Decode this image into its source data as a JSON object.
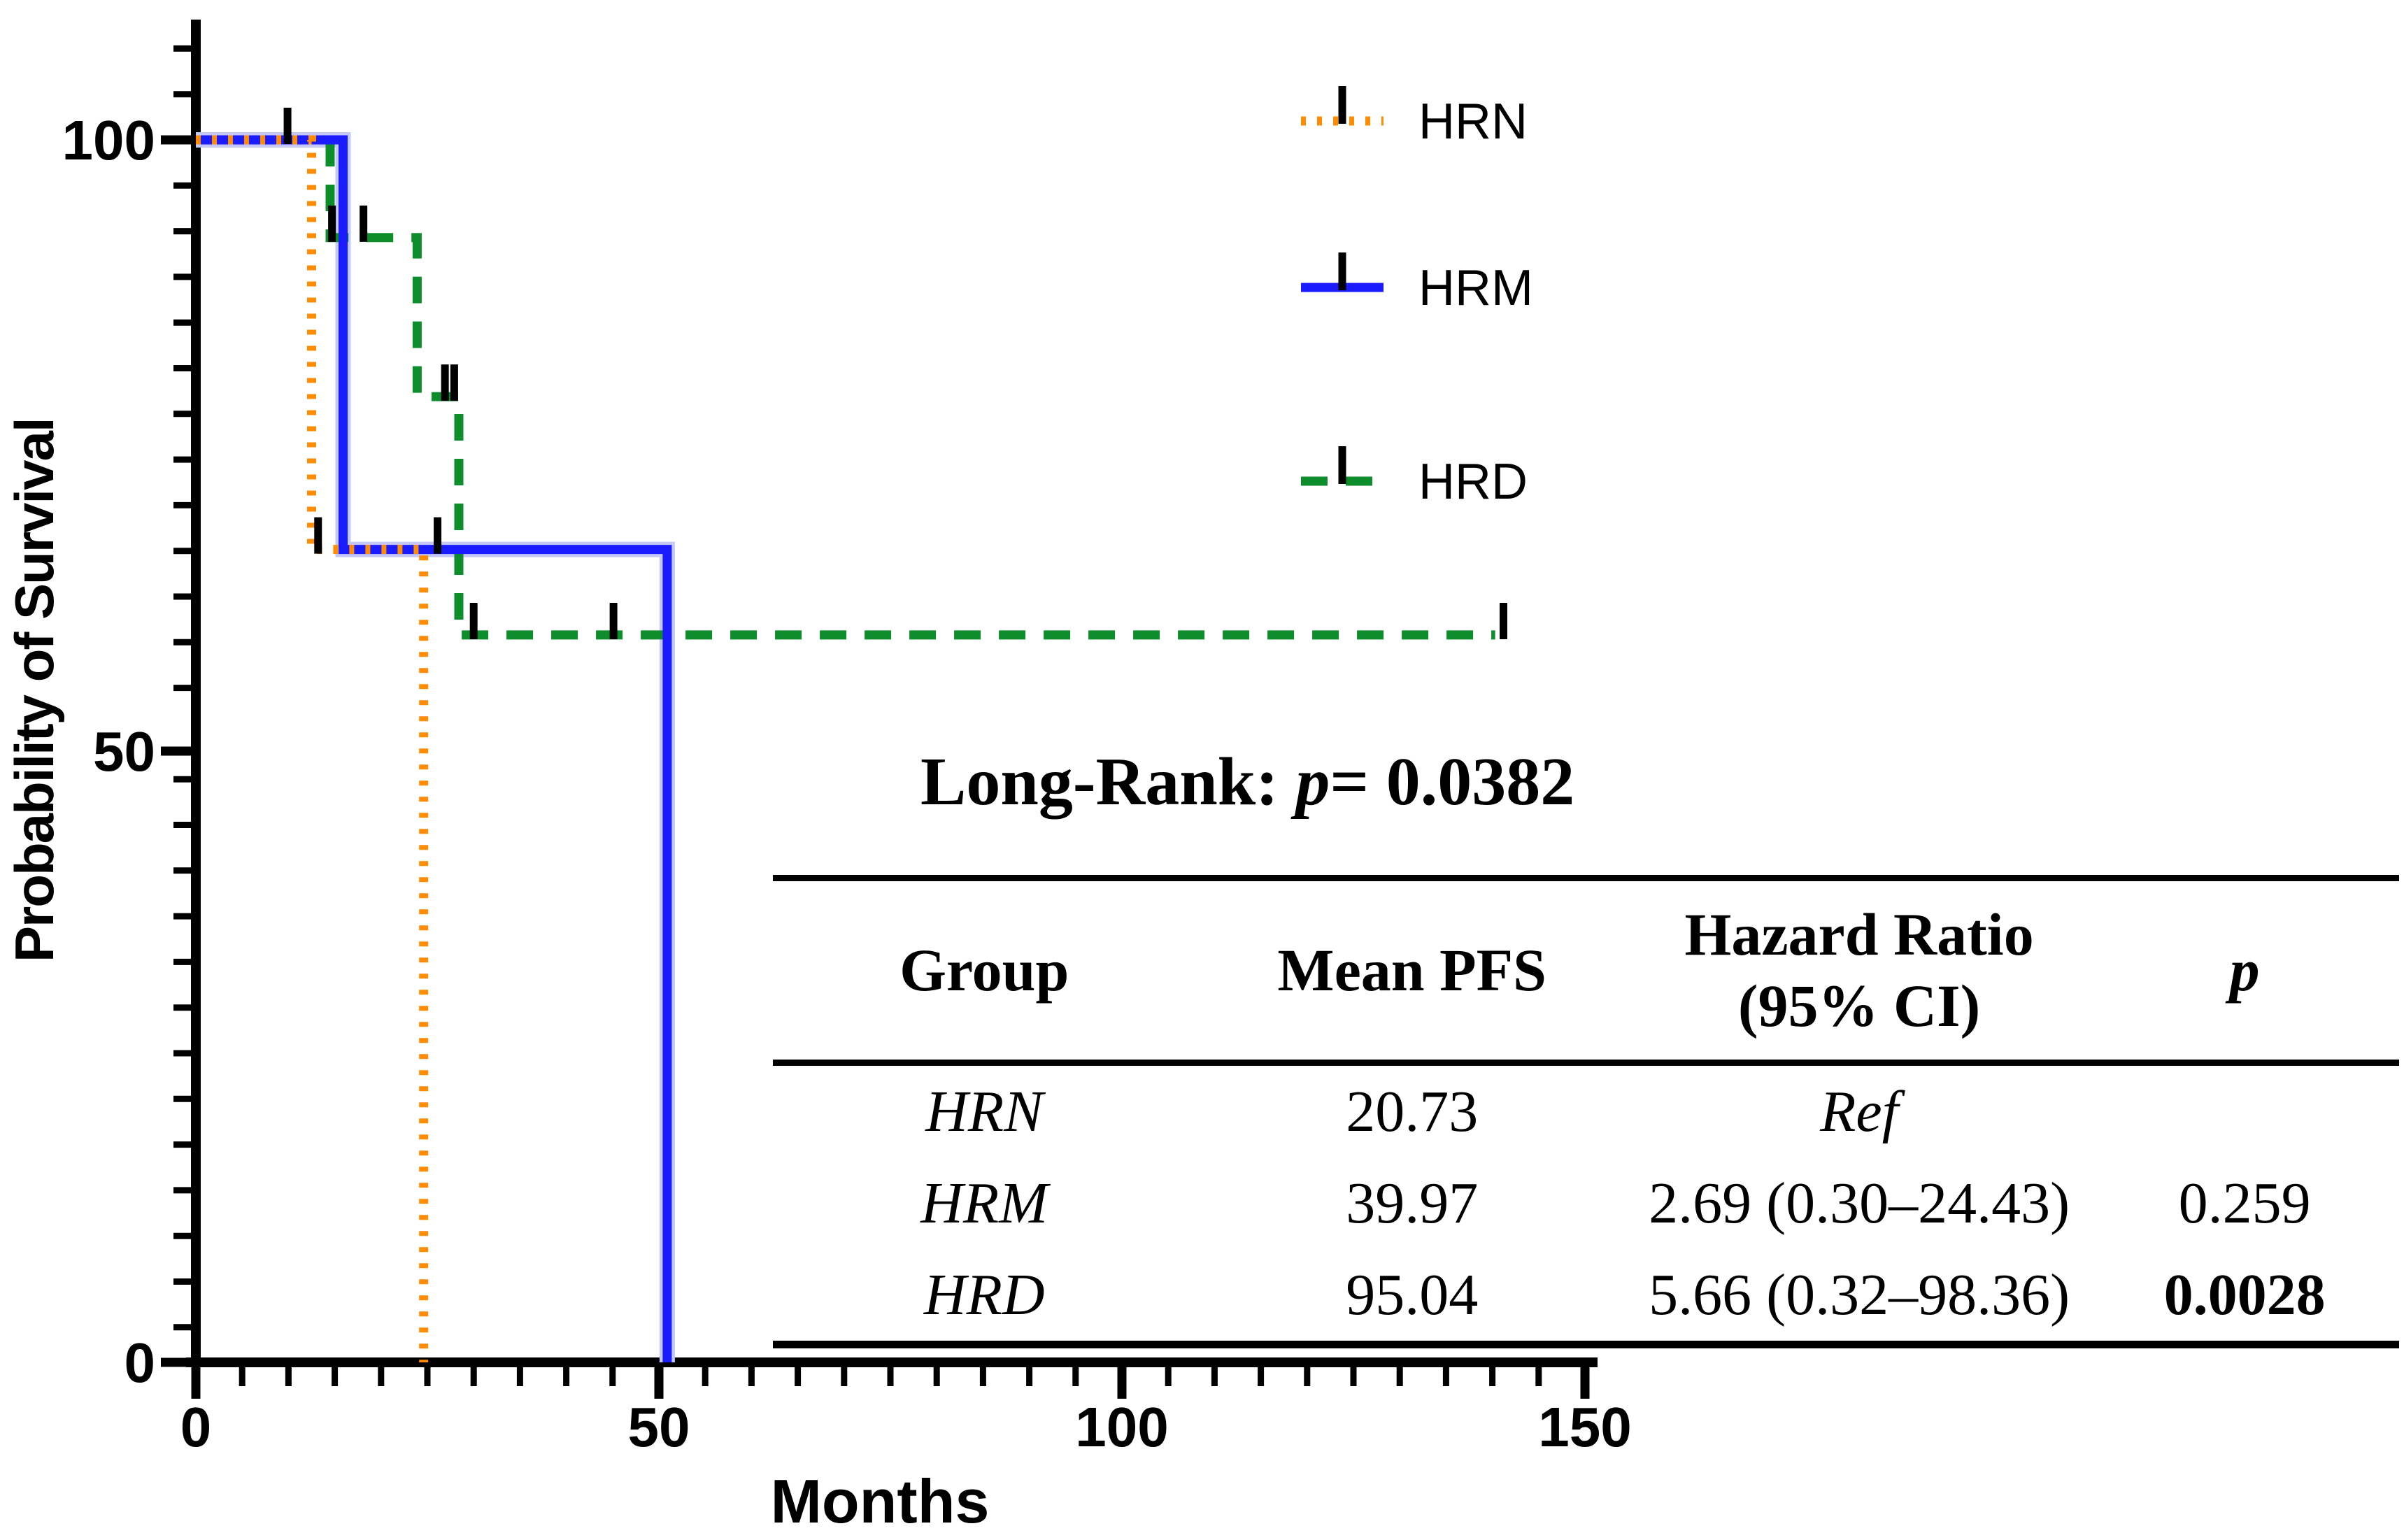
{
  "y_axis": {
    "label": "Probability of Survival",
    "ticks": [
      100,
      50,
      0
    ]
  },
  "x_axis": {
    "label": "Months",
    "ticks": [
      0,
      50,
      100,
      150
    ]
  },
  "legend": [
    {
      "label": "HRN",
      "color": "#FF8C05",
      "line_style": "dotted"
    },
    {
      "label": "HRM",
      "color": "#1B1BFF",
      "line_style": "solid"
    },
    {
      "label": "HRD",
      "color": "#0E8D2D",
      "line_style": "dashed"
    }
  ],
  "annotation": {
    "label": "Long-Rank: ",
    "p_symbol": "p",
    "value": "= 0.0382"
  },
  "table": {
    "headers": {
      "group": "Group",
      "mean_pfs": "Mean PFS",
      "hazard_line1": "Hazard Ratio",
      "hazard_line2": "(95% CI)",
      "p": "p"
    },
    "rows": [
      {
        "group": "HRN",
        "mean_pfs": "20.73",
        "hazard": "Ref",
        "p": ""
      },
      {
        "group": "HRM",
        "mean_pfs": "39.97",
        "hazard": "2.69 (0.30–24.43)",
        "p": "0.259"
      },
      {
        "group": "HRD",
        "mean_pfs": "95.04",
        "hazard": "5.66 (0.32–98.36)",
        "p": "0.0028"
      }
    ]
  },
  "chart_data": {
    "type": "line",
    "subtype": "kaplan-meier-step",
    "title": "",
    "xlabel": "Months",
    "ylabel": "Probability of Survival",
    "xlim": [
      0,
      150
    ],
    "ylim": [
      0,
      100
    ],
    "x_ticks": [
      0,
      50,
      100,
      150
    ],
    "y_ticks": [
      100,
      50,
      0
    ],
    "grid": false,
    "legend_position": "inside-top-right",
    "log_rank_label": "Long-Rank: p= 0.0382",
    "series": [
      {
        "name": "HRD",
        "color": "#0E8D2D",
        "line_style": "dashed",
        "points": [
          [
            0,
            100
          ],
          [
            14.5,
            100
          ],
          [
            14.5,
            92
          ],
          [
            23.9,
            92
          ],
          [
            23.9,
            79
          ],
          [
            28.4,
            79
          ],
          [
            28.4,
            59.5
          ],
          [
            140.3,
            59.5
          ]
        ]
      },
      {
        "name": "HRM",
        "color": "#1B1BFF",
        "line_style": "solid",
        "points": [
          [
            0,
            100
          ],
          [
            15.9,
            100
          ],
          [
            15.9,
            66.5
          ],
          [
            50.9,
            66.5
          ],
          [
            50.9,
            0
          ]
        ]
      },
      {
        "name": "HRN",
        "color": "#FF8C05",
        "line_style": "dotted",
        "points": [
          [
            0,
            100
          ],
          [
            12.5,
            100
          ],
          [
            12.5,
            66.5
          ],
          [
            24.6,
            66.5
          ],
          [
            24.6,
            0
          ]
        ]
      }
    ],
    "censor_marks": [
      [
        9.9,
        100
      ],
      [
        13.2,
        66.5
      ],
      [
        26.1,
        66.5
      ],
      [
        14.7,
        92
      ],
      [
        18.1,
        92
      ],
      [
        26.9,
        79
      ],
      [
        27.9,
        79
      ],
      [
        30.0,
        59.5
      ],
      [
        45.1,
        59.5
      ],
      [
        141.2,
        59.5
      ]
    ],
    "stats_table": {
      "columns": [
        "Group",
        "Mean PFS",
        "Hazard Ratio (95% CI)",
        "p"
      ],
      "rows": [
        [
          "HRN",
          "20.73",
          "Ref",
          ""
        ],
        [
          "HRM",
          "39.97",
          "2.69 (0.30–24.43)",
          "0.259"
        ],
        [
          "HRD",
          "95.04",
          "5.66 (0.32–98.36)",
          "0.0028"
        ]
      ]
    }
  }
}
